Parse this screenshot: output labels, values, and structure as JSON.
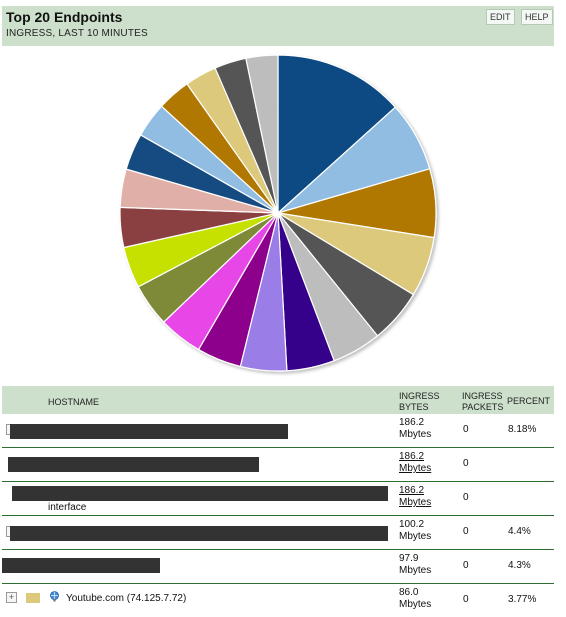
{
  "header": {
    "title": "Top 20 Endpoints",
    "subtitle": "INGRESS, LAST 10 MINUTES",
    "edit_label": "EDIT",
    "help_label": "HELP"
  },
  "chart_data": {
    "type": "pie",
    "title": "",
    "values": [
      8.18,
      4.4,
      4.3,
      3.77,
      3.4,
      3.1,
      3.0,
      2.9,
      2.8,
      2.75,
      2.7,
      2.6,
      2.5,
      2.4,
      2.3,
      2.2,
      2.1,
      2.0,
      2.0,
      2.0
    ],
    "colors": [
      "#0f4a82",
      "#90bde1",
      "#b07800",
      "#dcc97c",
      "#555555",
      "#bdbdbd",
      "#36008a",
      "#9b7de8",
      "#8c008c",
      "#e847e8",
      "#7e8a38",
      "#c6e000",
      "#8a4040",
      "#e0b0a8",
      "#174b82",
      "#90bde1",
      "#b07800",
      "#dcc97c",
      "#555555",
      "#bdbdbd"
    ]
  },
  "table": {
    "headers": {
      "hostname": "HOSTNAME",
      "ingress_bytes": "INGRESS BYTES",
      "ingress_packets": "INGRESS PACKETS",
      "percent": "PERCENT"
    },
    "rows": [
      {
        "host": "",
        "bytes": "186.2 Mbytes",
        "packets": "0",
        "percent": "8.18%"
      },
      {
        "host": "",
        "bytes": "186.2 Mbytes",
        "packets": "0",
        "percent": ""
      },
      {
        "host": "interface",
        "bytes": "186.2 Mbytes",
        "packets": "0",
        "percent": ""
      },
      {
        "host": "",
        "bytes": "100.2 Mbytes",
        "packets": "0",
        "percent": "4.4%"
      },
      {
        "host": "",
        "bytes": "97.9 Mbytes",
        "packets": "0",
        "percent": "4.3%"
      },
      {
        "host": "Youtube.com (74.125.7.72)",
        "bytes": "86.0 Mbytes",
        "packets": "0",
        "percent": "3.77%"
      }
    ]
  }
}
